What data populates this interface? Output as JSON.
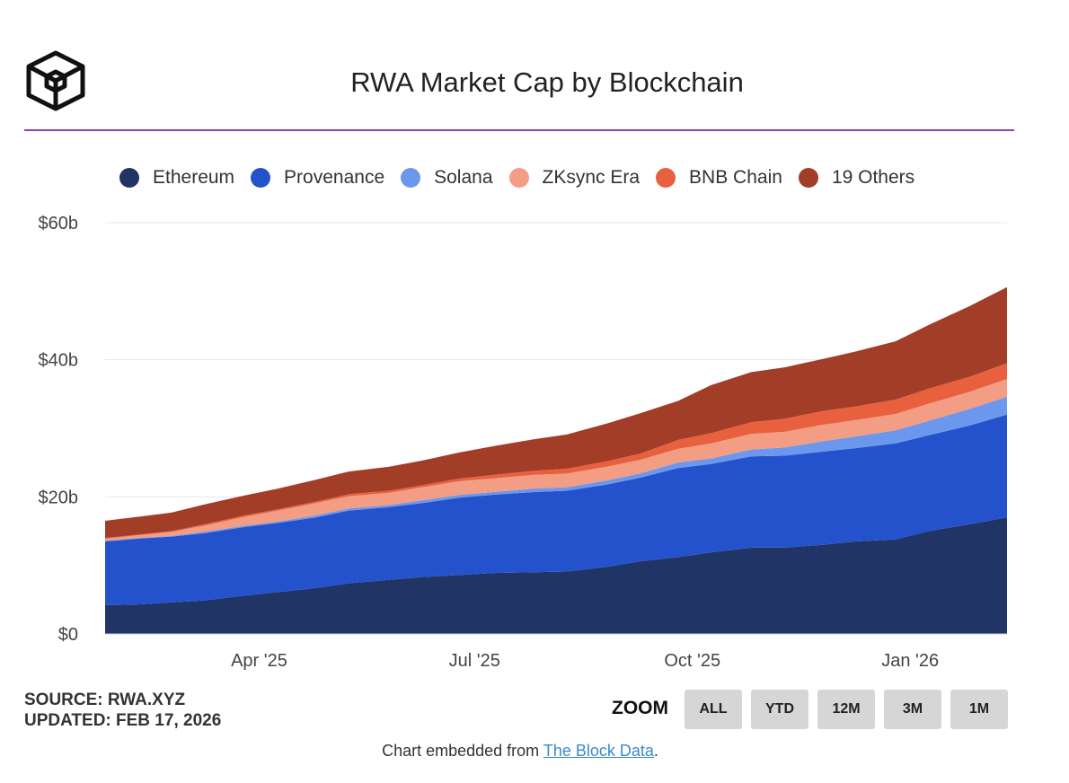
{
  "header": {
    "title": "RWA Market Cap by Blockchain"
  },
  "footer": {
    "source": "SOURCE: RWA.XYZ",
    "updated": "UPDATED: FEB 17, 2026",
    "embed_prefix": "Chart embedded from ",
    "embed_link": "The Block Data",
    "embed_suffix": "."
  },
  "zoom": {
    "label": "ZOOM",
    "buttons": [
      "ALL",
      "YTD",
      "12M",
      "3M",
      "1M"
    ]
  },
  "colors": {
    "accent_rule": "#8e3fc0",
    "grid": "#e6e6e6"
  },
  "chart_data": {
    "type": "area",
    "stacked": true,
    "title": "RWA Market Cap by Blockchain",
    "legend_position": "top",
    "grid": true,
    "ylim": [
      0,
      60
    ],
    "y_unit": "billions USD",
    "y_ticks": [
      "$0",
      "$20b",
      "$40b",
      "$60b"
    ],
    "x_ticks": [
      "Apr '25",
      "Jul '25",
      "Oct '25",
      "Jan '26"
    ],
    "x": [
      "2025-02-01",
      "2025-02-15",
      "2025-03-01",
      "2025-03-15",
      "2025-04-01",
      "2025-04-15",
      "2025-05-01",
      "2025-05-15",
      "2025-06-01",
      "2025-06-15",
      "2025-07-01",
      "2025-07-15",
      "2025-08-01",
      "2025-08-15",
      "2025-09-01",
      "2025-09-15",
      "2025-10-01",
      "2025-10-15",
      "2025-11-01",
      "2025-11-15",
      "2025-12-01",
      "2025-12-15",
      "2026-01-01",
      "2026-01-15",
      "2026-02-01",
      "2026-02-17"
    ],
    "series": [
      {
        "name": "Ethereum",
        "color": "#213466",
        "values": [
          4.2,
          4.3,
          4.6,
          4.9,
          5.6,
          6.1,
          6.7,
          7.4,
          7.9,
          8.3,
          8.6,
          8.9,
          9.0,
          9.1,
          9.8,
          10.6,
          11.2,
          11.9,
          12.6,
          12.6,
          13.0,
          13.5,
          13.8,
          15.0,
          16.0,
          17.0
        ]
      },
      {
        "name": "Provenance",
        "color": "#2452cd",
        "values": [
          9.3,
          9.6,
          9.6,
          9.8,
          10.0,
          10.1,
          10.3,
          10.6,
          10.6,
          10.8,
          11.3,
          11.4,
          11.7,
          11.8,
          12.0,
          12.2,
          13.0,
          12.9,
          13.3,
          13.4,
          13.6,
          13.6,
          14.0,
          14.0,
          14.4,
          15.0
        ]
      },
      {
        "name": "Solana",
        "color": "#6b97ec",
        "values": [
          0.1,
          0.1,
          0.1,
          0.2,
          0.2,
          0.2,
          0.3,
          0.3,
          0.3,
          0.4,
          0.4,
          0.4,
          0.5,
          0.5,
          0.6,
          0.6,
          0.8,
          0.8,
          1.0,
          1.2,
          1.5,
          1.7,
          1.9,
          2.1,
          2.4,
          2.6
        ]
      },
      {
        "name": "ZKsync Era",
        "color": "#f29d84",
        "values": [
          0.3,
          0.4,
          0.6,
          0.9,
          1.3,
          1.6,
          1.8,
          1.8,
          1.8,
          1.9,
          2.0,
          2.0,
          2.0,
          2.0,
          2.0,
          2.0,
          2.0,
          2.2,
          2.3,
          2.3,
          2.4,
          2.4,
          2.4,
          2.5,
          2.5,
          2.6
        ]
      },
      {
        "name": "BNB Chain",
        "color": "#e8603e",
        "values": [
          0.1,
          0.1,
          0.1,
          0.2,
          0.2,
          0.2,
          0.2,
          0.3,
          0.3,
          0.3,
          0.4,
          0.5,
          0.6,
          0.7,
          0.8,
          0.9,
          1.3,
          1.5,
          1.7,
          1.9,
          2.0,
          2.0,
          2.1,
          2.2,
          2.2,
          2.3
        ]
      },
      {
        "name": "19 Others",
        "color": "#a23d27",
        "values": [
          2.5,
          2.6,
          2.7,
          2.9,
          2.9,
          3.0,
          3.2,
          3.3,
          3.5,
          3.6,
          3.8,
          4.2,
          4.6,
          5.0,
          5.5,
          5.9,
          5.7,
          7.0,
          7.3,
          7.5,
          7.6,
          8.0,
          8.5,
          9.3,
          10.3,
          11.1
        ]
      }
    ]
  }
}
